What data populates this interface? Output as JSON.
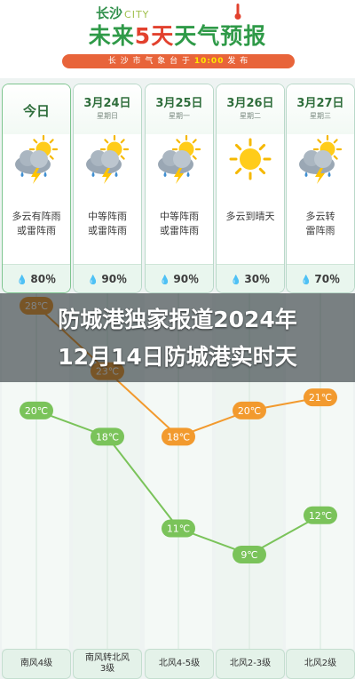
{
  "header": {
    "city": "长沙",
    "city_en": "CITY",
    "title_a": "未来",
    "title_b": "5天",
    "title_c": "天气预报",
    "pub_prefix": "长 沙 市 气 象 台 于",
    "pub_time": "10:00",
    "pub_suffix": "发 布"
  },
  "days": [
    {
      "date": "今日",
      "weekday": "",
      "icon": "cloud-sun-thunder-rain-icon",
      "desc1": "多云有阵雨",
      "desc2": "或雷阵雨",
      "rain": "80％",
      "high": "28℃",
      "low": "20℃",
      "wind": "南风4级"
    },
    {
      "date": "3月24日",
      "weekday": "星期日",
      "icon": "cloud-sun-thunder-rain-icon",
      "desc1": "中等阵雨",
      "desc2": "或雷阵雨",
      "rain": "90％",
      "high": "23℃",
      "low": "18℃",
      "wind": "南风转北风\n3级"
    },
    {
      "date": "3月25日",
      "weekday": "星期一",
      "icon": "cloud-sun-thunder-rain-icon",
      "desc1": "中等阵雨",
      "desc2": "或雷阵雨",
      "rain": "90％",
      "high": "18℃",
      "low": "11℃",
      "wind": "北风4-5级"
    },
    {
      "date": "3月26日",
      "weekday": "星期二",
      "icon": "sun-icon",
      "desc1": "多云到晴天",
      "desc2": "",
      "rain": "30％",
      "high": "20℃",
      "low": "9℃",
      "wind": "北风2-3级"
    },
    {
      "date": "3月27日",
      "weekday": "星期三",
      "icon": "cloud-sun-thunder-rain-icon",
      "desc1": "多云转",
      "desc2": "雷阵雨",
      "rain": "70％",
      "high": "21℃",
      "low": "12℃",
      "wind": "北风2级"
    }
  ],
  "overlay": {
    "line1": "防城港独家报道2024年",
    "line2": "12月14日防城港实时天"
  },
  "chart_data": {
    "type": "line",
    "categories": [
      "今日",
      "3月24日",
      "3月25日",
      "3月26日",
      "3月27日"
    ],
    "series": [
      {
        "values": [
          28,
          23,
          18,
          20,
          21
        ],
        "color": "#f29a2e"
      },
      {
        "values": [
          20,
          18,
          11,
          9,
          12
        ],
        "color": "#7ac35a"
      }
    ]
  }
}
